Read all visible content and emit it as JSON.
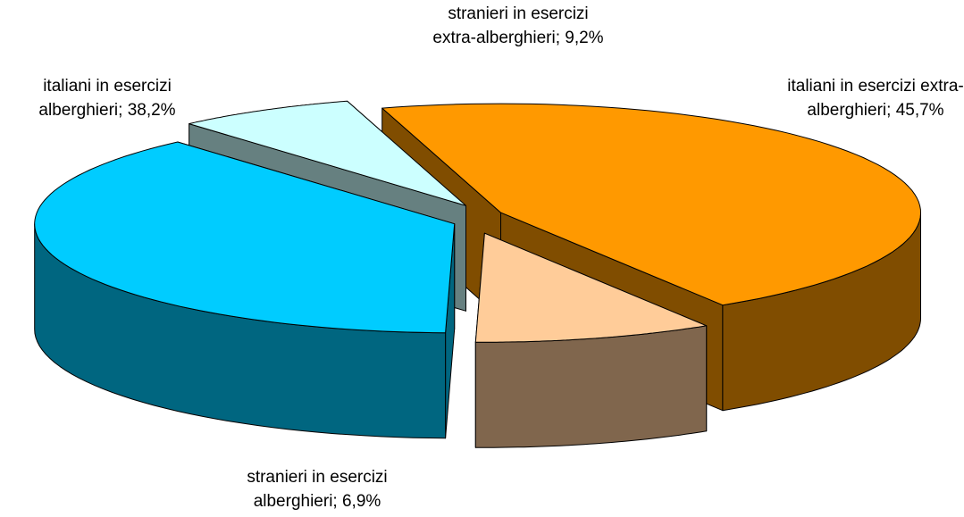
{
  "chart_data": {
    "type": "pie3d",
    "values": [
      38.2,
      6.9,
      45.7,
      9.2
    ],
    "value_labels": [
      "italiani in esercizi alberghieri; 38,2%",
      "stranieri in esercizi alberghieri; 6,9%",
      "italiani in esercizi extra-alberghieri; 45,7%",
      "stranieri in esercizi extra-alberghieri; 9,2%"
    ],
    "colors": [
      "#00ccff",
      "#ccffff",
      "#ff9900",
      "#ffcc99"
    ]
  }
}
